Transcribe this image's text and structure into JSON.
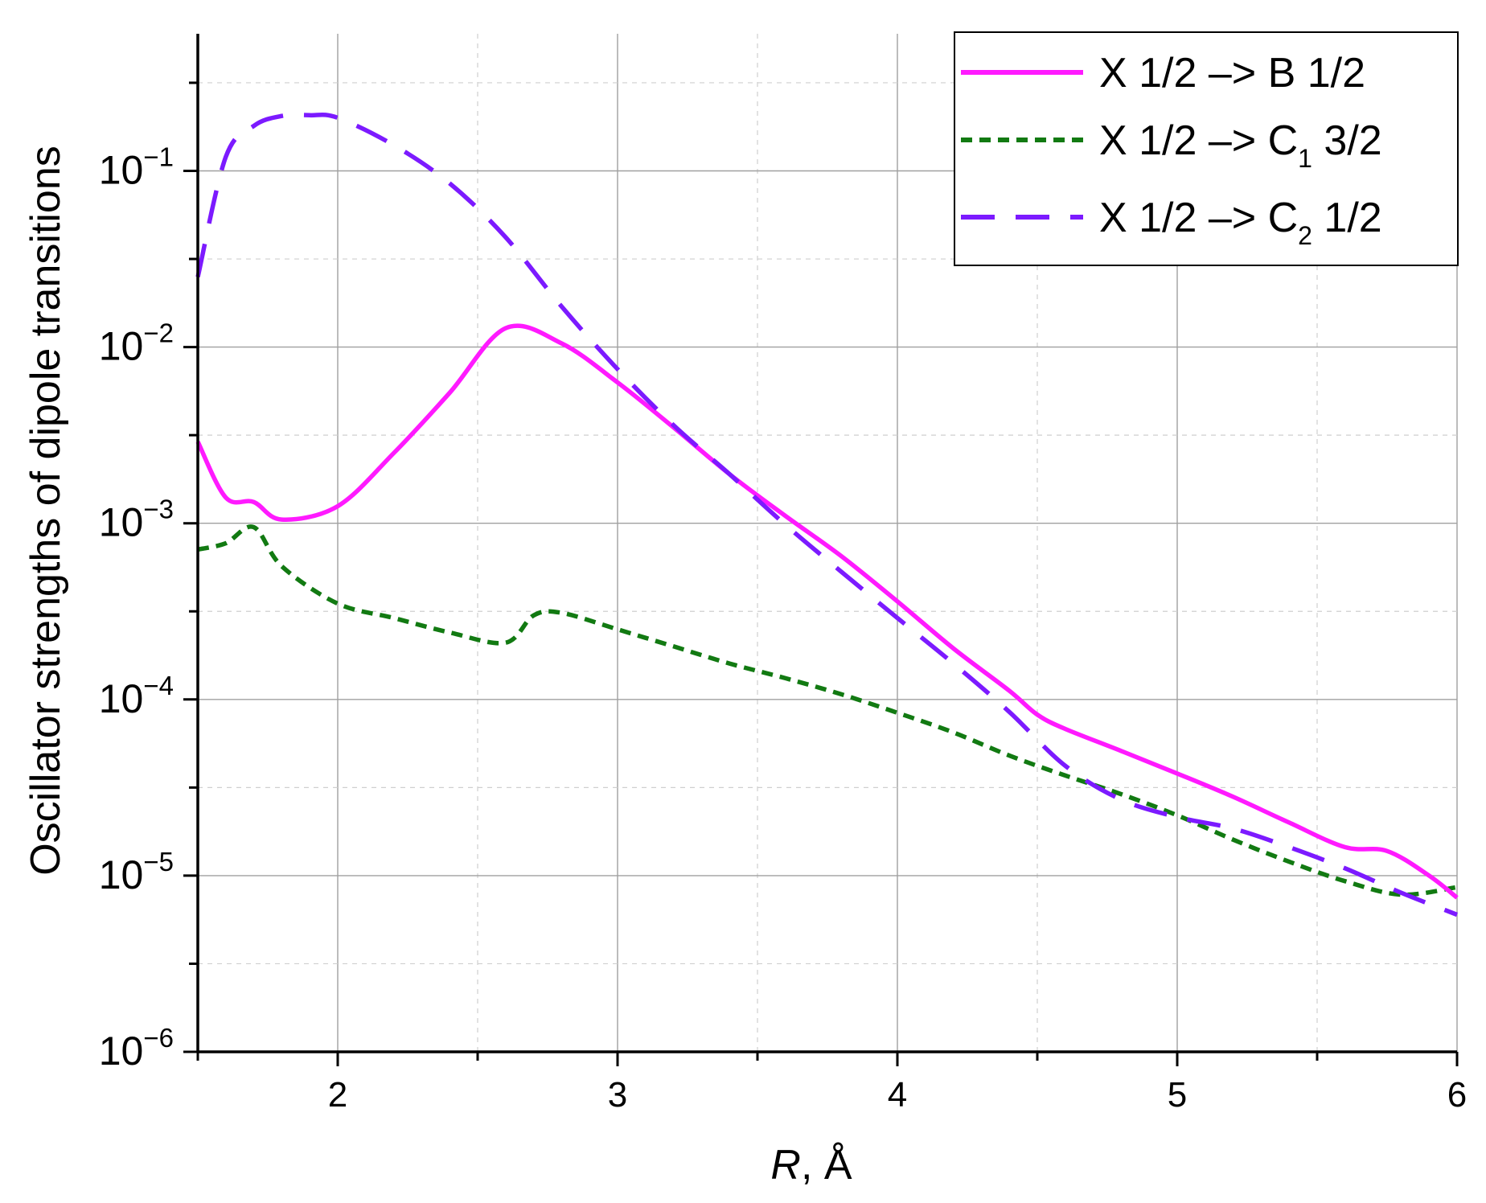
{
  "chart_data": {
    "type": "line",
    "xlabel_italic": "R",
    "xlabel_rest": ", Å",
    "ylabel": "Oscillator strengths of dipole transitions",
    "xlim": [
      1.5,
      6.0
    ],
    "ylim": [
      1e-06,
      0.6
    ],
    "yscale": "log",
    "grid": true,
    "legend_position": "top-right",
    "x_ticks": [
      "2",
      "3",
      "4",
      "5",
      "6"
    ],
    "y_ticks": [
      {
        "base": "10",
        "exp": "−6"
      },
      {
        "base": "10",
        "exp": "−5"
      },
      {
        "base": "10",
        "exp": "−4"
      },
      {
        "base": "10",
        "exp": "−3"
      },
      {
        "base": "10",
        "exp": "−2"
      },
      {
        "base": "10",
        "exp": "−1"
      }
    ],
    "series": [
      {
        "legend_main": "X 1/2 –> B 1/2",
        "legend_sub": "",
        "legend_tail": "",
        "color": "#ff1aff",
        "style": "solid",
        "x": [
          1.5,
          1.6,
          1.7,
          1.8,
          2.0,
          2.2,
          2.4,
          2.6,
          2.8,
          3.0,
          3.2,
          3.4,
          3.6,
          3.8,
          4.0,
          4.2,
          4.4,
          4.5,
          4.6,
          4.8,
          5.0,
          5.2,
          5.4,
          5.6,
          5.75,
          5.9,
          6.0
        ],
        "y": [
          0.0029,
          0.0014,
          0.00132,
          0.00105,
          0.00125,
          0.0025,
          0.0055,
          0.0128,
          0.0105,
          0.0063,
          0.0035,
          0.0019,
          0.0011,
          0.00065,
          0.00036,
          0.000195,
          0.000112,
          8.2e-05,
          6.8e-05,
          5.1e-05,
          3.8e-05,
          2.8e-05,
          2e-05,
          1.45e-05,
          1.38e-05,
          1e-05,
          7.5e-06
        ]
      },
      {
        "legend_main": "X 1/2 –> C",
        "legend_sub": "1",
        "legend_tail": " 3/2",
        "color": "#127a12",
        "style": "dotted",
        "x": [
          1.5,
          1.6,
          1.7,
          1.8,
          2.0,
          2.2,
          2.4,
          2.6,
          2.7,
          2.8,
          3.0,
          3.2,
          3.4,
          3.6,
          3.8,
          4.0,
          4.2,
          4.4,
          4.6,
          4.8,
          5.0,
          5.2,
          5.4,
          5.6,
          5.8,
          6.0
        ],
        "y": [
          0.00071,
          0.00077,
          0.00095,
          0.00057,
          0.00035,
          0.00029,
          0.00024,
          0.00021,
          0.0003,
          0.00031,
          0.00025,
          0.0002,
          0.00016,
          0.000132,
          0.000107,
          8.4e-05,
          6.5e-05,
          4.8e-05,
          3.7e-05,
          2.9e-05,
          2.2e-05,
          1.6e-05,
          1.2e-05,
          9.3e-06,
          7.8e-06,
          8.6e-06
        ]
      },
      {
        "legend_main": "X 1/2 –> C",
        "legend_sub": "2",
        "legend_tail": " 1/2",
        "color": "#7c1aff",
        "style": "dashed",
        "x": [
          1.5,
          1.6,
          1.7,
          1.8,
          1.9,
          2.0,
          2.2,
          2.4,
          2.6,
          2.8,
          3.0,
          3.2,
          3.4,
          3.6,
          3.8,
          4.0,
          4.2,
          4.4,
          4.6,
          4.8,
          5.0,
          5.2,
          5.4,
          5.6,
          5.8,
          6.0
        ],
        "y": [
          0.025,
          0.12,
          0.18,
          0.205,
          0.207,
          0.2,
          0.14,
          0.085,
          0.042,
          0.017,
          0.0075,
          0.0036,
          0.0019,
          0.00098,
          0.00053,
          0.00029,
          0.00016,
          8.5e-05,
          4.2e-05,
          2.7e-05,
          2.15e-05,
          1.85e-05,
          1.45e-05,
          1.1e-05,
          8e-06,
          6e-06
        ]
      }
    ]
  }
}
